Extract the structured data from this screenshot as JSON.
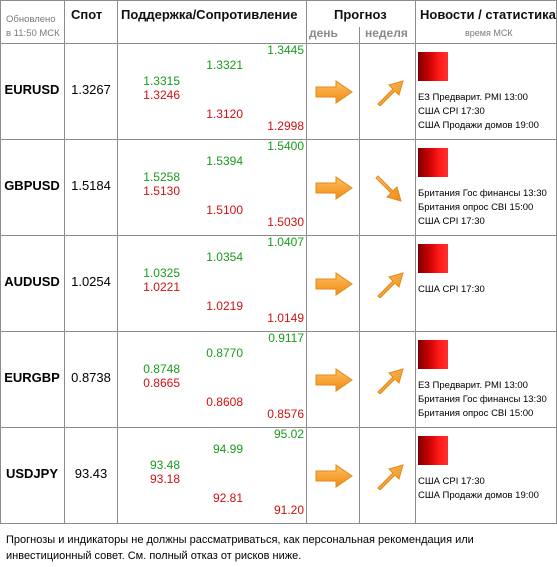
{
  "header": {
    "updated_line1": "Обновлено",
    "updated_line2": "в 11:50 МСК",
    "spot": "Спот",
    "support_resistance": "Поддержка/Сопротивление",
    "forecast": "Прогноз",
    "day": "день",
    "week": "неделя",
    "news": "Новости / статистика",
    "news_time": "время МСК"
  },
  "rows": [
    {
      "pair": "EURUSD",
      "spot": "1.3267",
      "s1_res": "1.3315",
      "s1_sup": "1.3246",
      "s2_res": "1.3321",
      "s2_sup": "1.3120",
      "s3_res": "1.3445",
      "s3_sup": "1.2998",
      "day_arrow": "arrow-right-icon",
      "week_arrow": "arrow-up-right-icon",
      "news": [
        "ЕЗ Предварит. PMI 13:00",
        "США CPI 17:30",
        "США Продажи домов 19:00"
      ]
    },
    {
      "pair": "GBPUSD",
      "spot": "1.5184",
      "s1_res": "1.5258",
      "s1_sup": "1.5130",
      "s2_res": "1.5394",
      "s2_sup": "1.5100",
      "s3_res": "1.5400",
      "s3_sup": "1.5030",
      "day_arrow": "arrow-right-icon",
      "week_arrow": "arrow-down-right-icon",
      "news": [
        "Британия Гос финансы 13:30",
        "Британия опрос CBI 15:00",
        "США CPI 17:30"
      ]
    },
    {
      "pair": "AUDUSD",
      "spot": "1.0254",
      "s1_res": "1.0325",
      "s1_sup": "1.0221",
      "s2_res": "1.0354",
      "s2_sup": "1.0219",
      "s3_res": "1.0407",
      "s3_sup": "1.0149",
      "day_arrow": "arrow-right-icon",
      "week_arrow": "arrow-up-right-icon",
      "news": [
        "США CPI 17:30"
      ]
    },
    {
      "pair": "EURGBP",
      "spot": "0.8738",
      "s1_res": "0.8748",
      "s1_sup": "0.8665",
      "s2_res": "0.8770",
      "s2_sup": "0.8608",
      "s3_res": "0.9117",
      "s3_sup": "0.8576",
      "day_arrow": "arrow-right-icon",
      "week_arrow": "arrow-up-right-icon",
      "news": [
        "ЕЗ Предварит. PMI 13:00",
        "Британия Гос финансы 13:30",
        "Британия опрос CBI 15:00"
      ]
    },
    {
      "pair": "USDJPY",
      "spot": "93.43",
      "s1_res": "93.48",
      "s1_sup": "93.18",
      "s2_res": "94.99",
      "s2_sup": "92.81",
      "s3_res": "95.02",
      "s3_sup": "91.20",
      "day_arrow": "arrow-right-icon",
      "week_arrow": "arrow-up-right-icon",
      "news": [
        "США CPI 17:30",
        "США Продажи домов 19:00"
      ]
    }
  ],
  "colors": {
    "resistance": "#1a9a1a",
    "support": "#d01010",
    "arrow": "#f5a020",
    "news_icon": "#e00000",
    "grid": "#8c8c8c"
  },
  "footer": {
    "disclaimer": "Прогнозы и индикаторы не должны рассматриваться, как персональная рекомендация или инвестиционный совет. См. полный отказ от рисков ниже."
  }
}
